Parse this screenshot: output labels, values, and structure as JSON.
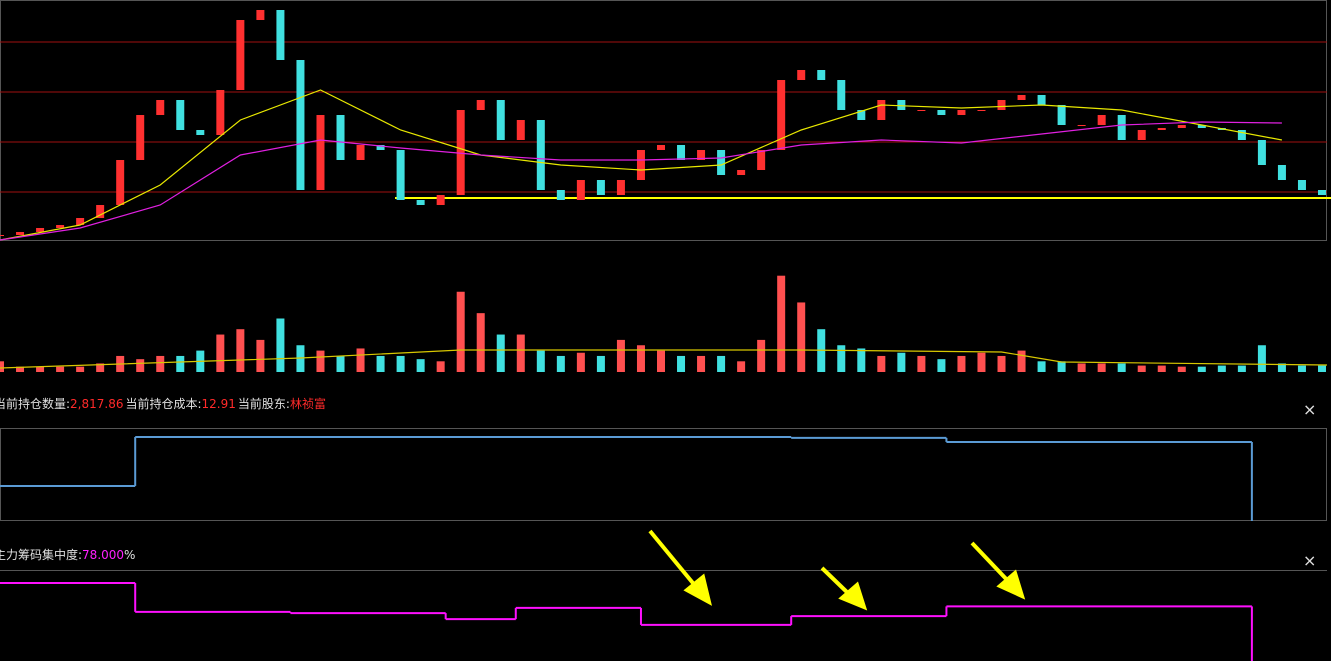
{
  "chart_data": [
    {
      "type": "candle-line",
      "ylim": [
        10.76,
        22.81
      ],
      "xlim": [
        0,
        265
      ],
      "grid_levels": [
        20.71,
        18.21,
        15.71,
        13.21
      ],
      "grid_color": "#a01010",
      "cost_line_color": "#ffff00",
      "x": [
        0,
        4,
        8,
        12,
        16,
        20,
        24,
        28,
        32,
        36,
        40,
        44,
        48,
        52,
        56,
        60,
        64,
        68,
        72,
        76,
        80,
        84,
        88,
        92,
        96,
        100,
        104,
        108,
        112,
        116,
        120,
        124,
        128,
        132,
        136,
        140,
        144,
        148,
        152,
        156,
        160,
        164,
        168,
        172,
        176,
        180,
        184,
        188,
        192,
        196,
        200,
        204,
        208,
        212,
        216,
        220,
        224,
        228,
        232,
        236,
        240,
        244,
        248,
        252,
        256,
        260,
        264
      ],
      "close": [
        11.06,
        11.21,
        11.41,
        11.56,
        11.91,
        12.56,
        14.81,
        17.06,
        17.81,
        16.31,
        16.06,
        18.31,
        21.81,
        22.31,
        19.81,
        13.31,
        17.06,
        14.81,
        15.56,
        15.31,
        12.81,
        12.56,
        13.06,
        17.31,
        17.81,
        15.81,
        16.81,
        13.31,
        12.81,
        13.81,
        13.06,
        13.81,
        15.31,
        15.56,
        14.81,
        15.31,
        14.06,
        14.31,
        15.31,
        18.81,
        19.31,
        18.81,
        17.31,
        16.81,
        17.81,
        17.31,
        17.31,
        17.06,
        17.31,
        17.31,
        17.81,
        18.06,
        17.56,
        16.56,
        16.56,
        17.06,
        15.81,
        16.31,
        16.41,
        16.56,
        16.41,
        16.31,
        15.81,
        14.56,
        13.81,
        13.31,
        13.06
      ],
      "up_color": "#ff3030",
      "down_color": "#40e0e0",
      "series": [
        {
          "color": "#e8e800",
          "x": [
            0,
            16,
            32,
            48,
            64,
            80,
            96,
            112,
            128,
            144,
            160,
            176,
            192,
            208,
            224,
            240,
            256
          ],
          "values": [
            10.81,
            11.56,
            13.56,
            16.81,
            18.31,
            16.31,
            15.06,
            14.56,
            14.31,
            14.56,
            16.31,
            17.56,
            17.41,
            17.56,
            17.31,
            16.56,
            15.81
          ]
        },
        {
          "color": "#e020e0",
          "x": [
            0,
            16,
            32,
            48,
            64,
            80,
            96,
            112,
            128,
            144,
            160,
            176,
            192,
            208,
            224,
            240,
            256
          ],
          "values": [
            10.81,
            11.41,
            12.56,
            15.06,
            15.81,
            15.41,
            15.06,
            14.81,
            14.81,
            14.91,
            15.56,
            15.81,
            15.66,
            16.11,
            16.56,
            16.71,
            16.66
          ]
        }
      ]
    },
    {
      "type": "volume",
      "ylim": [
        0,
        100
      ],
      "xlim": [
        0,
        265
      ],
      "x": [
        0,
        4,
        8,
        12,
        16,
        20,
        24,
        28,
        32,
        36,
        40,
        44,
        48,
        52,
        56,
        60,
        64,
        68,
        72,
        76,
        80,
        84,
        88,
        92,
        96,
        100,
        104,
        108,
        112,
        116,
        120,
        124,
        128,
        132,
        136,
        140,
        144,
        148,
        152,
        156,
        160,
        164,
        168,
        172,
        176,
        180,
        184,
        188,
        192,
        196,
        200,
        204,
        208,
        212,
        216,
        220,
        224,
        228,
        232,
        236,
        240,
        244,
        248,
        252,
        256,
        260,
        264
      ],
      "values": [
        10,
        5,
        5,
        5,
        5,
        8,
        15,
        12,
        15,
        15,
        20,
        35,
        40,
        30,
        50,
        25,
        20,
        15,
        22,
        15,
        15,
        12,
        10,
        75,
        55,
        35,
        35,
        20,
        15,
        18,
        15,
        30,
        25,
        20,
        15,
        15,
        15,
        10,
        30,
        90,
        65,
        40,
        25,
        22,
        15,
        18,
        15,
        12,
        15,
        18,
        15,
        20,
        10,
        10,
        8,
        8,
        8,
        6,
        6,
        5,
        5,
        6,
        6,
        25,
        8,
        6,
        6
      ],
      "series": [
        {
          "color": "#d8c800",
          "x": [
            0,
            60,
            92,
            160,
            200,
            212,
            265
          ],
          "values": [
            3.7,
            13.1,
            20.6,
            20.6,
            18.7,
            9.3,
            6.5
          ]
        }
      ]
    },
    {
      "type": "step",
      "ylim": [
        0,
        3000
      ],
      "xlim": [
        0,
        265
      ],
      "color": "#5b9bd5",
      "header": [
        {
          "label": "当前持仓数量:",
          "value": "2,817.86"
        },
        {
          "label": "当前持仓成本:",
          "value": 12.91
        },
        {
          "label": "当前股东:",
          "value": "林祯富"
        }
      ],
      "close_button": "×",
      "x": [
        0,
        27,
        158,
        189,
        250
      ],
      "values": [
        1130,
        2710,
        2680,
        2550,
        0
      ]
    },
    {
      "type": "step",
      "ylim": [
        60,
        90
      ],
      "xlim": [
        0,
        265
      ],
      "color": "#ff10ff",
      "header": [
        {
          "label": "主力筹码集中度:",
          "value": "78.000",
          "unit": "%"
        }
      ],
      "close_button": "×",
      "x": [
        0,
        27,
        58,
        89,
        103,
        128,
        158,
        189,
        250
      ],
      "values": [
        85.7,
        76.2,
        75.8,
        73.8,
        77.5,
        71.9,
        74.8,
        78.0,
        60
      ]
    }
  ]
}
